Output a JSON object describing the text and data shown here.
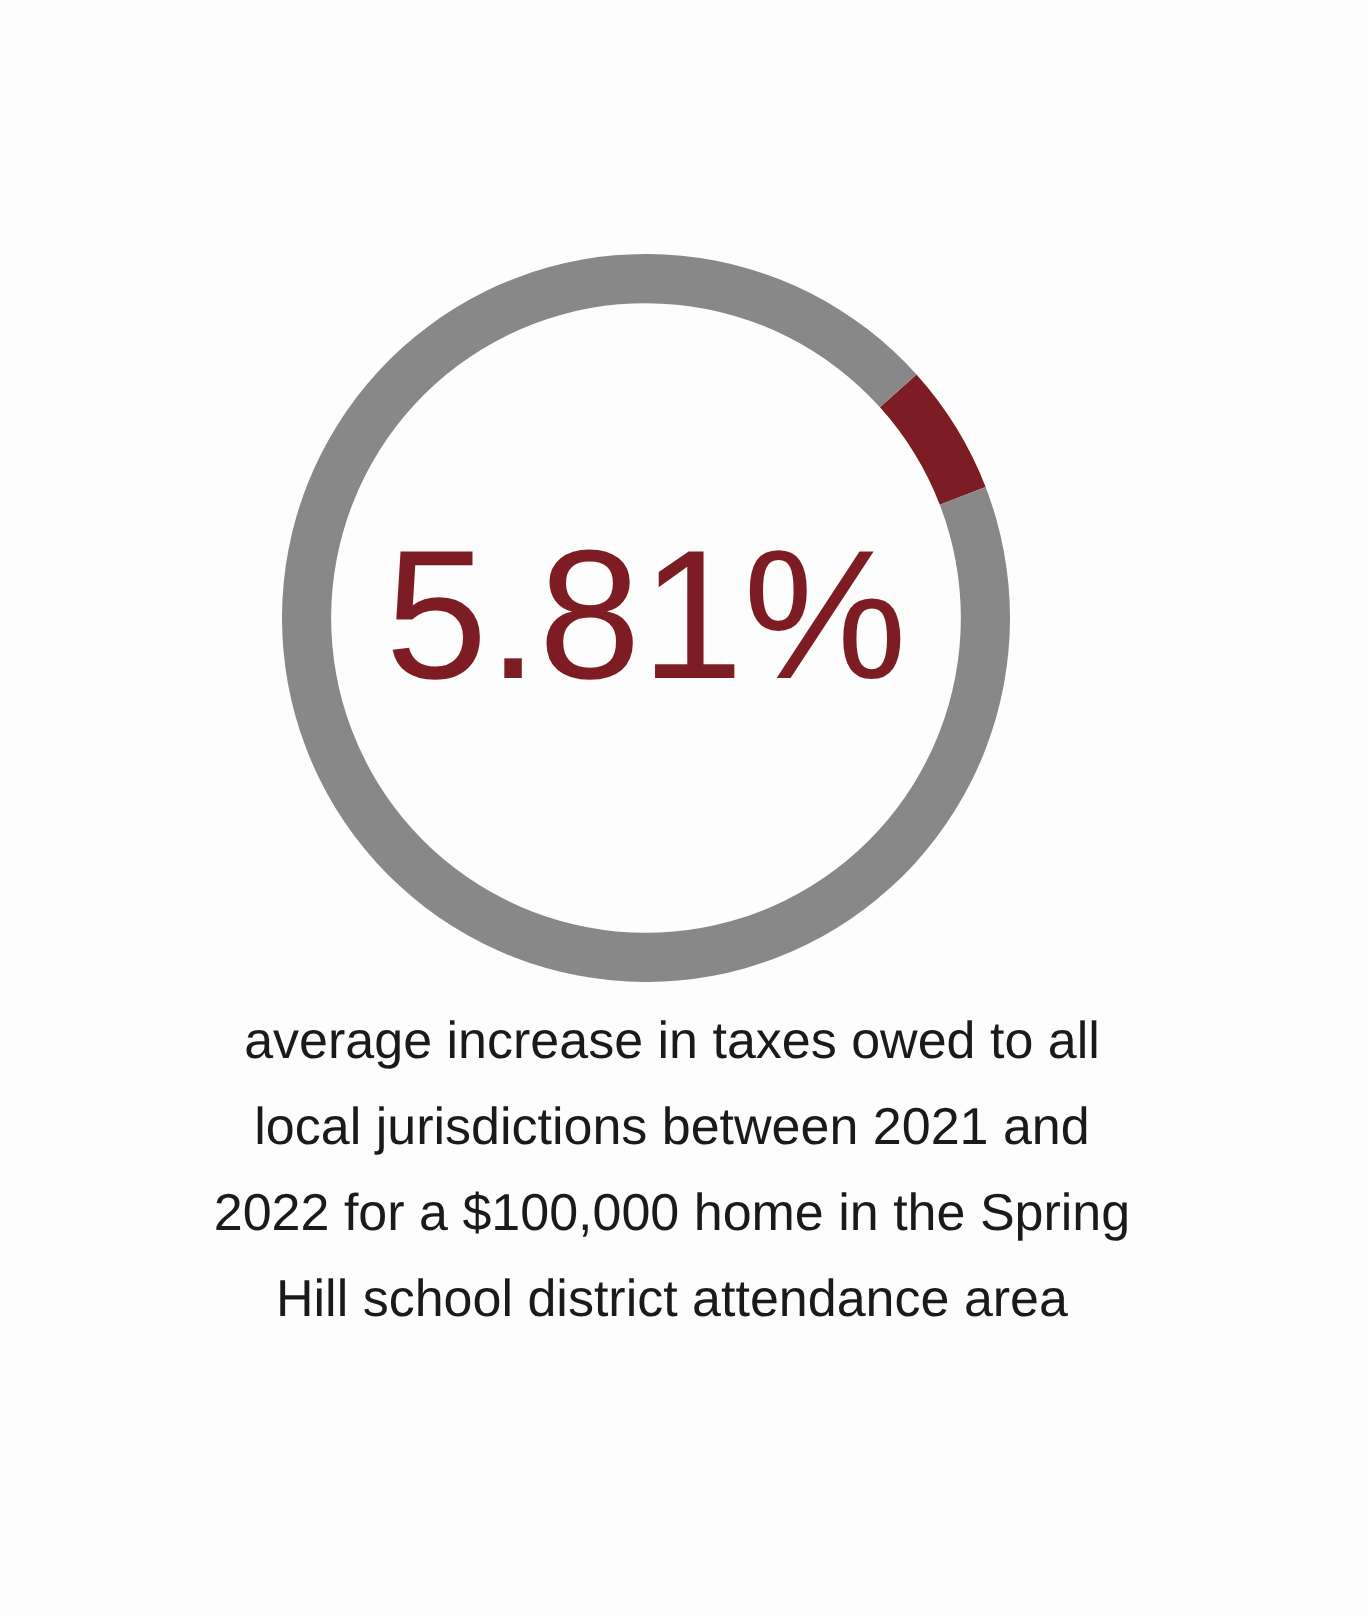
{
  "chart_data": {
    "type": "donut",
    "categories": [
      null,
      null
    ],
    "values": [
      5.81,
      94.19
    ],
    "colors": [
      "#7d1c22",
      "#888888"
    ],
    "annotations": [
      "5.81%",
      "average increase in taxes owed to all local jurisdictions between 2021 and 2022 for a $100,000 home in the Spring Hill school district attendance area"
    ]
  }
}
